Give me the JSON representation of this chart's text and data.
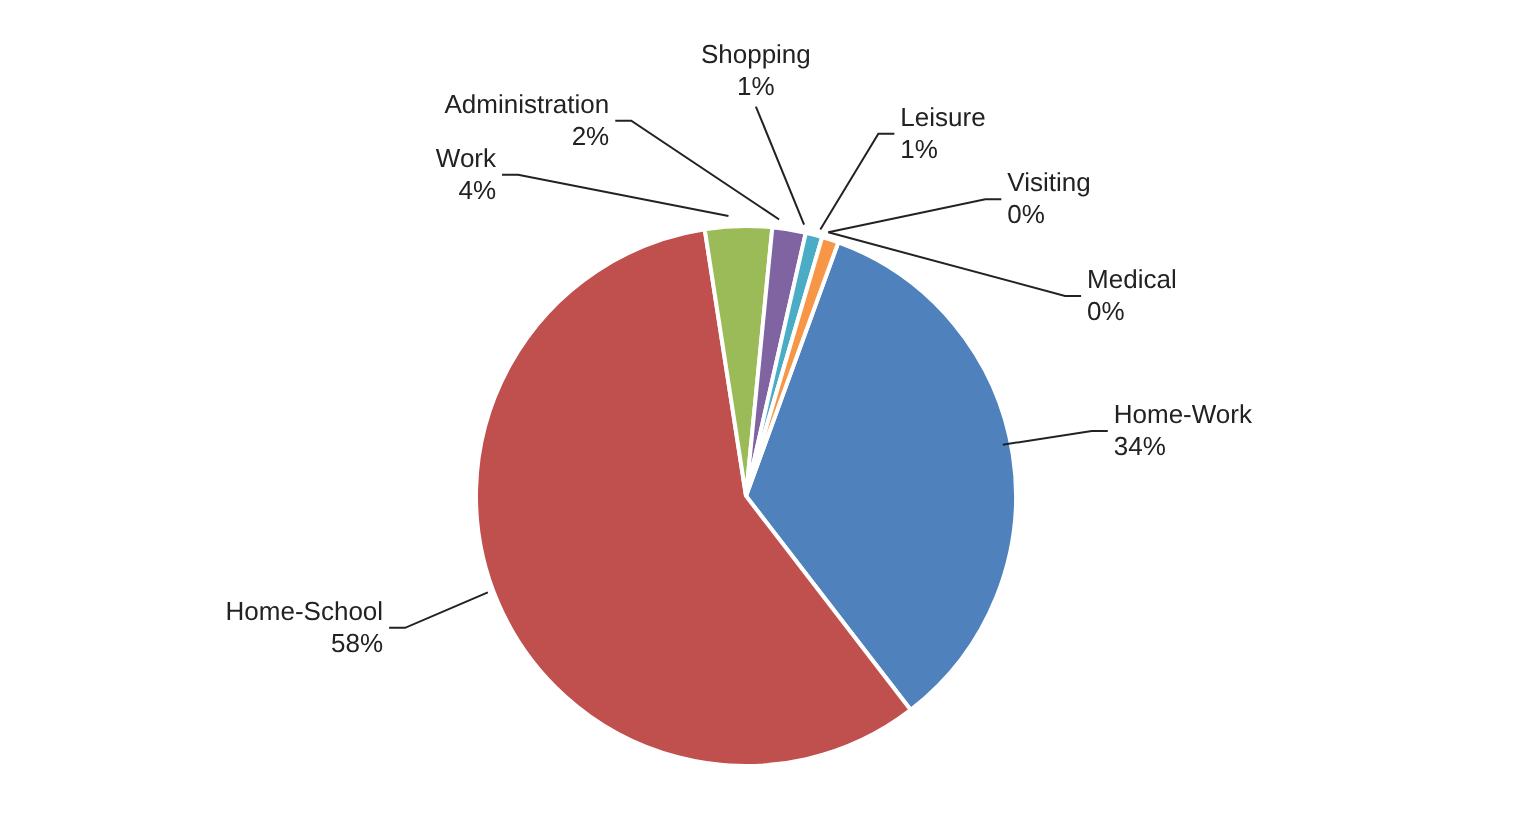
{
  "chart_data": {
    "type": "pie",
    "categories": [
      "Home-Work",
      "Home-School",
      "Work",
      "Administration",
      "Shopping",
      "Leisure",
      "Visiting",
      "Medical"
    ],
    "values": [
      34,
      58,
      4,
      2,
      1,
      1,
      0,
      0
    ],
    "colors": [
      "#4f81bd",
      "#c0504d",
      "#9bbb59",
      "#8064a2",
      "#4bacc6",
      "#f79646",
      "#2c4d75",
      "#772c2a"
    ],
    "value_labels": [
      "34%",
      "58%",
      "4%",
      "2%",
      "1%",
      "1%",
      "0%",
      "0%"
    ],
    "legend": false
  }
}
